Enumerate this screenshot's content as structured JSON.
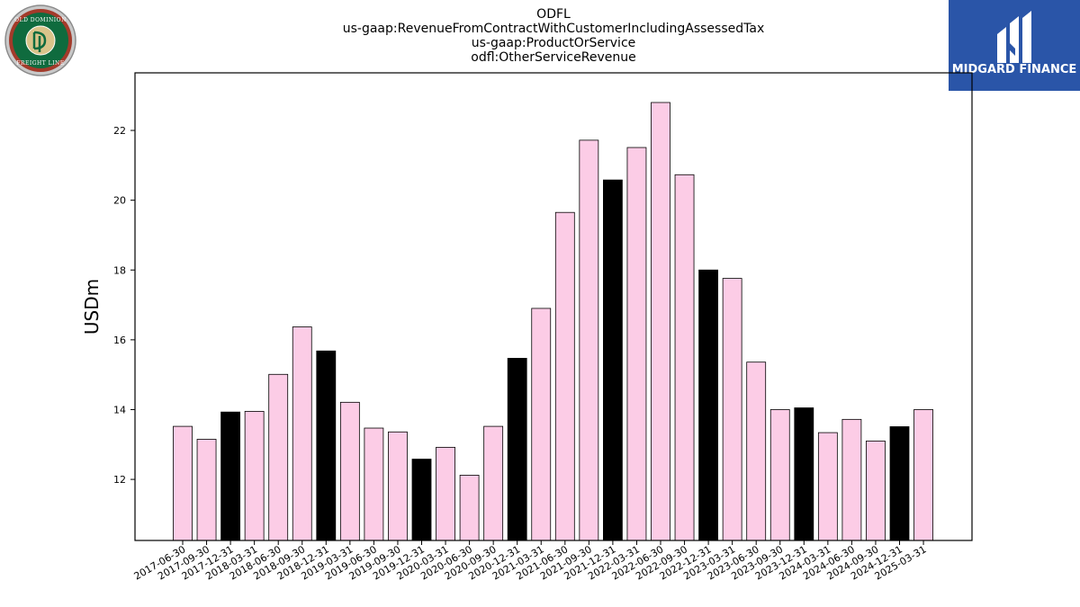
{
  "header": {
    "left_logo_label": "Old Dominion Freight Line logo",
    "left_logo_text_top": "OLD DOMINION",
    "left_logo_text_bottom": "FREIGHT LINE",
    "right_logo_text": "MIDGARD FINANCE",
    "right_logo_bg": "#2a55a8"
  },
  "chart_data": {
    "type": "bar",
    "title_lines": [
      "ODFL",
      "us-gaap:RevenueFromContractWithCustomerIncludingAssessedTax",
      "us-gaap:ProductOrService",
      "odfl:OtherServiceRevenue"
    ],
    "ylabel": "USDm",
    "xlabel": "",
    "ylim": [
      10.25,
      23.65
    ],
    "yticks": [
      12,
      14,
      16,
      18,
      20,
      22
    ],
    "grid": false,
    "colors": {
      "default": "#fccce6",
      "highlight": "#000000",
      "edge": "#000000"
    },
    "highlight_rule": "fiscal year end (12-31) bars are black",
    "categories": [
      "2017-06-30",
      "2017-09-30",
      "2017-12-31",
      "2018-03-31",
      "2018-06-30",
      "2018-09-30",
      "2018-12-31",
      "2019-03-31",
      "2019-06-30",
      "2019-09-30",
      "2019-12-31",
      "2020-03-31",
      "2020-06-30",
      "2020-09-30",
      "2020-12-31",
      "2021-03-31",
      "2021-06-30",
      "2021-09-30",
      "2021-12-31",
      "2022-03-31",
      "2022-06-30",
      "2022-09-30",
      "2022-12-31",
      "2023-03-31",
      "2023-06-30",
      "2023-09-30",
      "2023-12-31",
      "2024-03-31",
      "2024-06-30",
      "2024-09-30",
      "2024-12-31",
      "2025-03-31"
    ],
    "values": [
      13.52,
      13.15,
      13.93,
      13.95,
      15.01,
      16.37,
      15.68,
      14.21,
      13.47,
      13.36,
      12.58,
      12.92,
      12.12,
      13.52,
      15.47,
      16.9,
      19.65,
      21.72,
      20.58,
      21.51,
      22.8,
      20.73,
      18.0,
      17.76,
      15.36,
      14.0,
      14.05,
      13.34,
      13.72,
      13.1,
      13.51,
      14.0
    ],
    "highlight": [
      false,
      false,
      true,
      false,
      false,
      false,
      true,
      false,
      false,
      false,
      true,
      false,
      false,
      false,
      true,
      false,
      false,
      false,
      true,
      false,
      false,
      false,
      true,
      false,
      false,
      false,
      true,
      false,
      false,
      false,
      true,
      false
    ]
  }
}
